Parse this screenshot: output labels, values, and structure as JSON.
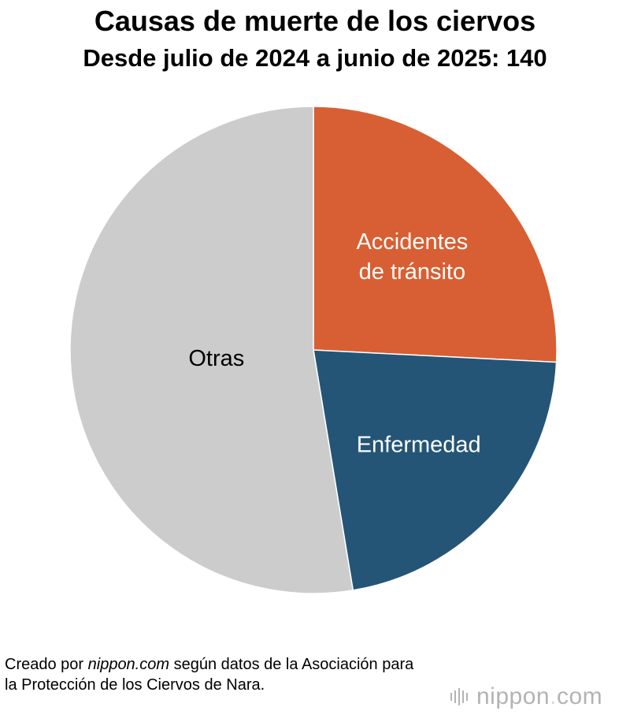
{
  "chart_data": {
    "type": "pie",
    "title": "Causas de muerte de los ciervos",
    "subtitle": "Desde julio de 2024 a junio de 2025: 140",
    "slices": [
      {
        "label": "Accidentes de tránsito",
        "label_lines": [
          "Accidentes",
          "de tránsito"
        ],
        "value": 25.8,
        "color": "#d85f33",
        "text_color": "#ffffff"
      },
      {
        "label": "Enfermedad",
        "label_lines": [
          "Enfermedad"
        ],
        "value": 21.6,
        "color": "#245577",
        "text_color": "#ffffff"
      },
      {
        "label": "Otras",
        "label_lines": [
          "Otras"
        ],
        "value": 52.6,
        "color": "#cccccc",
        "text_color": "#000000"
      }
    ],
    "start": "12 o'clock",
    "direction": "clockwise"
  },
  "source": {
    "prefix": "Creado por ",
    "site": "nippon.com",
    "suffix": " según datos de la Asociación para la Protección de los Ciervos de Nara."
  },
  "brand": {
    "name": "nippon",
    "dot": ".",
    "tld": "com"
  }
}
